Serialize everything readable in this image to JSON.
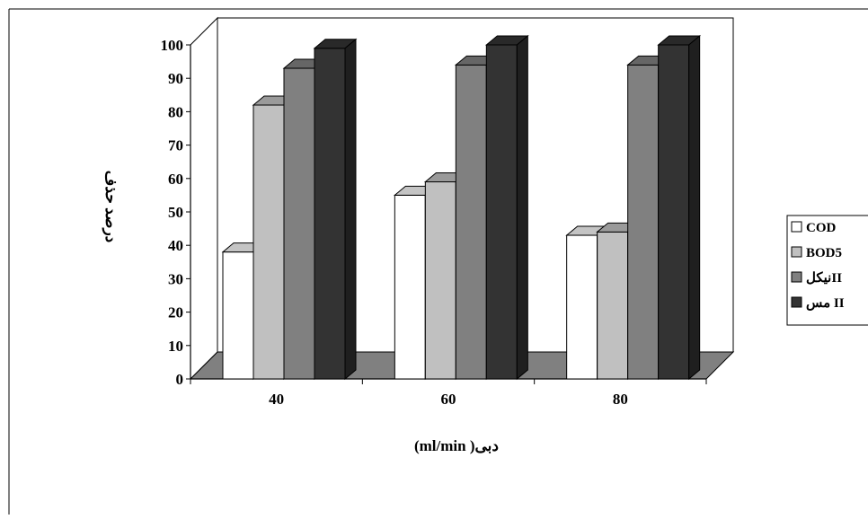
{
  "chart_data": {
    "type": "bar",
    "title": "",
    "xlabel": "(ml/min )دبی",
    "ylabel": "درصد حذف",
    "ylim": [
      0,
      100
    ],
    "yticks": [
      0,
      10,
      20,
      30,
      40,
      50,
      60,
      70,
      80,
      90,
      100
    ],
    "categories": [
      "40",
      "60",
      "80"
    ],
    "series": [
      {
        "name": "COD",
        "values": [
          38,
          55,
          43
        ],
        "color": "#ffffff"
      },
      {
        "name": "BOD5",
        "values": [
          82,
          59,
          44
        ],
        "color": "#c0c0c0"
      },
      {
        "name": "نیکلII",
        "values": [
          93,
          94,
          94
        ],
        "color": "#808080"
      },
      {
        "name": "مس II",
        "values": [
          99,
          100,
          100
        ],
        "color": "#333333"
      }
    ],
    "grid": false,
    "legend_position": "right",
    "style": "3d-clustered-column"
  }
}
